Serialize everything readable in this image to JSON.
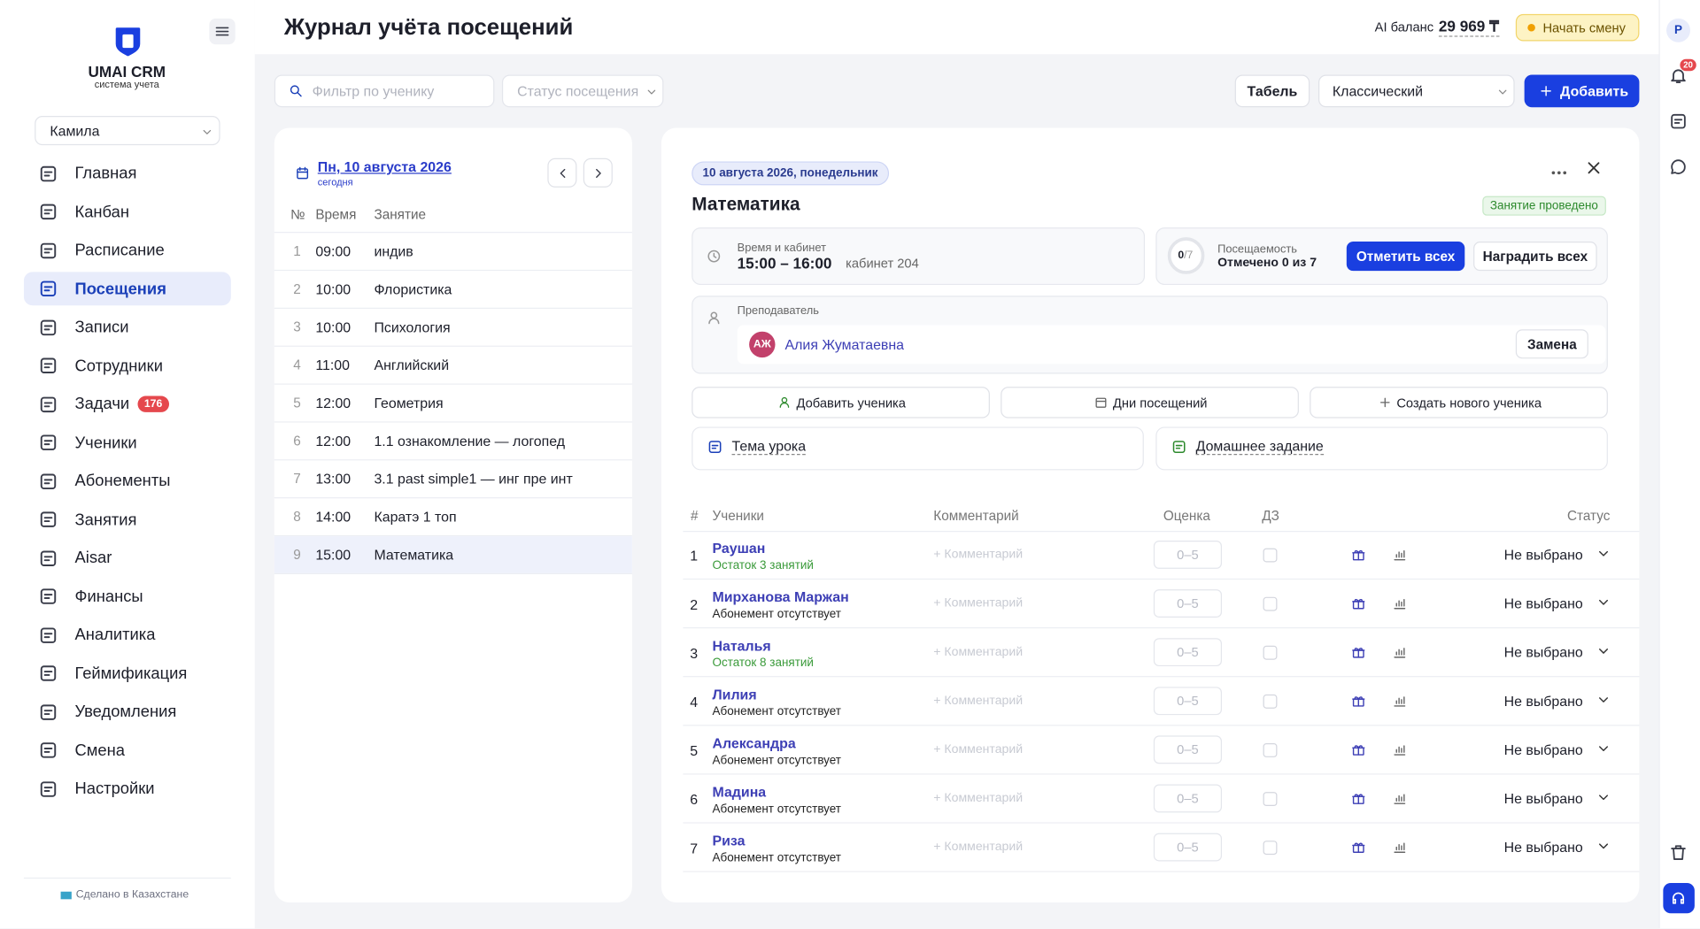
{
  "sidebar": {
    "brand": "UMAI CRM",
    "brand_sub": "система учета",
    "user": "Камила",
    "nav": [
      {
        "label": "Главная"
      },
      {
        "label": "Канбан"
      },
      {
        "label": "Расписание"
      },
      {
        "label": "Посещения",
        "active": true
      },
      {
        "label": "Записи"
      },
      {
        "label": "Сотрудники"
      },
      {
        "label": "Задачи",
        "badge": "176"
      },
      {
        "label": "Ученики"
      },
      {
        "label": "Абонементы"
      },
      {
        "label": "Занятия"
      },
      {
        "label": "Aisar"
      },
      {
        "label": "Финансы"
      },
      {
        "label": "Аналитика"
      },
      {
        "label": "Геймификация"
      },
      {
        "label": "Уведомления"
      },
      {
        "label": "Смена"
      },
      {
        "label": "Настройки"
      }
    ],
    "footer": "Сделано в Казахстане"
  },
  "header": {
    "title": "Журнал учёта посещений",
    "balance_label": "AI баланс",
    "balance": "29 969 ₸",
    "shift_button": "Начать смену",
    "avatar": "Р",
    "notifications": "20"
  },
  "toolbar": {
    "search_placeholder": "Фильтр по ученику",
    "status_placeholder": "Статус посещения",
    "tabel": "Табель",
    "view": "Классический",
    "add": "Добавить"
  },
  "schedule": {
    "date": "Пн, 10 августа 2026",
    "today": "сегодня",
    "columns": [
      "№",
      "Время",
      "Занятие"
    ],
    "rows": [
      {
        "n": "1",
        "time": "09:00",
        "name": "индив"
      },
      {
        "n": "2",
        "time": "10:00",
        "name": "Флористика"
      },
      {
        "n": "3",
        "time": "10:00",
        "name": "Психология"
      },
      {
        "n": "4",
        "time": "11:00",
        "name": "Английский"
      },
      {
        "n": "5",
        "time": "12:00",
        "name": "Геометрия"
      },
      {
        "n": "6",
        "time": "12:00",
        "name": "1.1 ознакомление — логопед"
      },
      {
        "n": "7",
        "time": "13:00",
        "name": "3.1 past simple1 — инг пре инт"
      },
      {
        "n": "8",
        "time": "14:00",
        "name": "Каратэ 1 топ"
      },
      {
        "n": "9",
        "time": "15:00",
        "name": "Математика",
        "selected": true
      }
    ]
  },
  "lesson": {
    "date_chip": "10 августа 2026, понедельник",
    "title": "Математика",
    "status": "Занятие проведено",
    "time_label": "Время и кабинет",
    "time": "15:00 – 16:00",
    "room": "кабинет 204",
    "attendance_label": "Посещаемость",
    "ring_done": "0",
    "ring_total": "/7",
    "attendance_text": "Отмечено 0 из 7",
    "mark_all": "Отметить всех",
    "reward_all": "Наградить всех",
    "teacher_label": "Преподаватель",
    "teacher_initials": "АЖ",
    "teacher": "Алия Жуматаевна",
    "replace": "Замена",
    "actions": [
      "Добавить ученика",
      "Дни посещений",
      "Создать нового ученика"
    ],
    "topic": "Тема урока",
    "homework": "Домашнее задание",
    "columns": [
      "#",
      "Ученики",
      "Комментарий",
      "Оценка",
      "ДЗ",
      "Статус"
    ],
    "comment_placeholder": "+ Комментарий",
    "grade_placeholder": "0–5",
    "status_value": "Не выбрано",
    "students": [
      {
        "n": "1",
        "name": "Раушан",
        "balance": "Остаток 3 занятий",
        "has_subscription": true
      },
      {
        "n": "2",
        "name": "Мирханова Маржан",
        "balance": "Абонемент отсутствует",
        "has_subscription": false
      },
      {
        "n": "3",
        "name": "Наталья",
        "balance": "Остаток 8 занятий",
        "has_subscription": true
      },
      {
        "n": "4",
        "name": "Лилия",
        "balance": "Абонемент отсутствует",
        "has_subscription": false
      },
      {
        "n": "5",
        "name": "Александра",
        "balance": "Абонемент отсутствует",
        "has_subscription": false
      },
      {
        "n": "6",
        "name": "Мадина",
        "balance": "Абонемент отсутствует",
        "has_subscription": false
      },
      {
        "n": "7",
        "name": "Риза",
        "balance": "Абонемент отсутствует",
        "has_subscription": false
      }
    ]
  }
}
